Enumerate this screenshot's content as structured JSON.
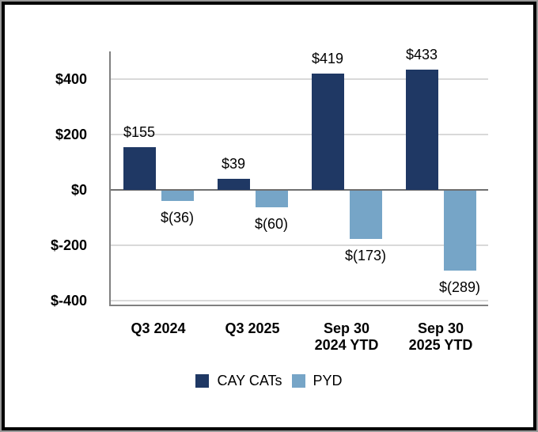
{
  "chart_data": {
    "type": "bar",
    "title": "",
    "categories": [
      "Q3 2024",
      "Q3 2025",
      "Sep 30\n2024 YTD",
      "Sep 30\n2025 YTD"
    ],
    "series": [
      {
        "name": "CAY CATs",
        "color": "#1F3864",
        "values": [
          155,
          39,
          419,
          433
        ],
        "data_labels": [
          "$155",
          "$39",
          "$419",
          "$433"
        ]
      },
      {
        "name": "PYD",
        "color": "#76A5C7",
        "values": [
          -36,
          -60,
          -173,
          -289
        ],
        "data_labels": [
          "$(36)",
          "$(60)",
          "$(173)",
          "$(289)"
        ]
      }
    ],
    "y_axis": {
      "tick_labels": [
        "$400",
        "$200",
        "$0",
        "$-200",
        "$-400"
      ],
      "tick_values": [
        400,
        200,
        0,
        -200,
        -400
      ],
      "ylim": [
        -420,
        500
      ]
    },
    "grid": true,
    "legend": {
      "position": "bottom",
      "entries": [
        {
          "label": "CAY CATs",
          "color": "#1F3864"
        },
        {
          "label": "PYD",
          "color": "#76A5C7"
        }
      ]
    },
    "colors": {
      "gridline": "#D9D9D9",
      "zero_line": "#6F6F6F",
      "axis_line": "#808080",
      "text": "#000000",
      "background": "#FFFFFF",
      "frame_border": "#000000",
      "frame_edge": "#9A9A9A"
    }
  }
}
